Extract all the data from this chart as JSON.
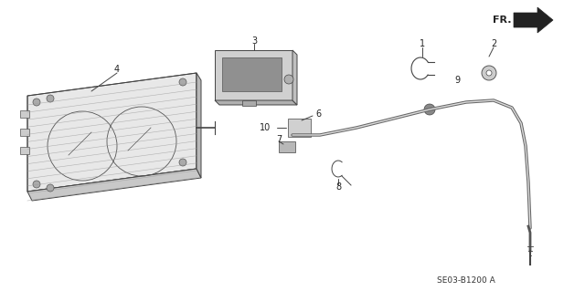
{
  "bg_color": "#ffffff",
  "title": "SE03-B1200 A",
  "fr_label": "FR.",
  "part_numbers": [
    "1",
    "2",
    "3",
    "4",
    "6",
    "7",
    "8",
    "9",
    "10"
  ],
  "fig_width": 6.4,
  "fig_height": 3.19,
  "dpi": 100
}
